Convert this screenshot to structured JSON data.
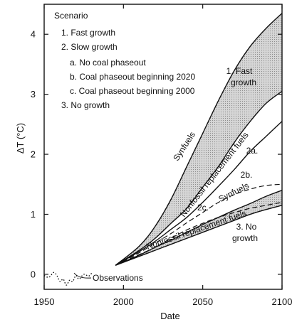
{
  "chart_data": {
    "type": "line",
    "xlabel": "Date",
    "ylabel": "ΔT (°C)",
    "xlim": [
      1950,
      2100
    ],
    "ylim": [
      -0.25,
      4.5
    ],
    "xticks": [
      1950,
      2000,
      2050,
      2100
    ],
    "yticks": [
      0,
      1,
      2,
      3,
      4
    ],
    "xtick_labels": [
      "1950",
      "2000",
      "2050",
      "2100"
    ],
    "ytick_labels": [
      "0",
      "1",
      "2",
      "3",
      "4"
    ],
    "legend": {
      "placement": "top-left",
      "title": "Scenario",
      "entries": [
        "1. Fast growth",
        "2. Slow growth",
        "a. No coal phaseout",
        "b. Coal phaseout beginning 2020",
        "c. Coal phaseout beginning 2000",
        "3. No growth"
      ]
    },
    "bands": [
      {
        "scenario": "1. Fast growth",
        "fill_color": "#d6d6d6",
        "upper": {
          "label": "Synfuels",
          "x": [
            1995,
            2010,
            2020,
            2030,
            2040,
            2050,
            2060,
            2070,
            2080,
            2090,
            2100
          ],
          "y": [
            0.15,
            0.47,
            0.8,
            1.25,
            1.8,
            2.35,
            2.9,
            3.4,
            3.8,
            4.1,
            4.35
          ]
        },
        "lower": {
          "label": "Nonfossil replacement fuels",
          "x": [
            1995,
            2010,
            2020,
            2030,
            2040,
            2050,
            2060,
            2070,
            2080,
            2090,
            2100
          ],
          "y": [
            0.15,
            0.4,
            0.6,
            0.85,
            1.1,
            1.45,
            1.8,
            2.2,
            2.55,
            2.85,
            3.05
          ]
        }
      },
      {
        "scenario": "3. No growth",
        "fill_color": "#d6d6d6",
        "upper": {
          "label": "Synfuels",
          "x": [
            1995,
            2010,
            2020,
            2030,
            2040,
            2050,
            2060,
            2070,
            2080,
            2090,
            2100
          ],
          "y": [
            0.15,
            0.32,
            0.45,
            0.57,
            0.7,
            0.83,
            0.95,
            1.07,
            1.18,
            1.3,
            1.4
          ]
        },
        "lower": {
          "label": "Nonfossil replacement fuels",
          "x": [
            1995,
            2010,
            2020,
            2030,
            2040,
            2050,
            2060,
            2070,
            2080,
            2090,
            2100
          ],
          "y": [
            0.15,
            0.3,
            0.4,
            0.5,
            0.6,
            0.7,
            0.8,
            0.9,
            1.0,
            1.08,
            1.15
          ]
        }
      }
    ],
    "series": [
      {
        "name": "2a.",
        "style": "solid",
        "x": [
          1995,
          2010,
          2020,
          2030,
          2040,
          2050,
          2060,
          2070,
          2080,
          2090,
          2100
        ],
        "y": [
          0.15,
          0.38,
          0.55,
          0.75,
          0.95,
          1.2,
          1.47,
          1.75,
          2.05,
          2.3,
          2.55
        ]
      },
      {
        "name": "2b.",
        "style": "dashed",
        "x": [
          1995,
          2010,
          2020,
          2030,
          2040,
          2050,
          2060,
          2070,
          2080,
          2090,
          2100
        ],
        "y": [
          0.15,
          0.36,
          0.52,
          0.68,
          0.86,
          1.03,
          1.2,
          1.33,
          1.42,
          1.48,
          1.5
        ]
      },
      {
        "name": "2c.",
        "style": "dashed",
        "x": [
          1995,
          2010,
          2020,
          2030,
          2040,
          2050,
          2060,
          2070,
          2080,
          2090,
          2100
        ],
        "y": [
          0.15,
          0.33,
          0.45,
          0.6,
          0.74,
          0.85,
          0.95,
          1.03,
          1.1,
          1.15,
          1.2
        ]
      },
      {
        "name": "Observations",
        "style": "dotted",
        "x": [
          1950,
          1953,
          1956,
          1958,
          1960,
          1962,
          1964,
          1966,
          1968,
          1970,
          1972,
          1975,
          1978,
          1980
        ],
        "y": [
          -0.02,
          -0.05,
          0.03,
          -0.02,
          -0.12,
          -0.08,
          -0.18,
          -0.1,
          -0.12,
          -0.02,
          -0.08,
          0.0,
          -0.03,
          0.02
        ]
      }
    ],
    "annotations": [
      {
        "text": "Synfuels",
        "near": "scenario 1 upper curve"
      },
      {
        "text": "Nonfossil replacement fuels",
        "near": "scenario 1 lower curve"
      },
      {
        "text": "1. Fast",
        "near": "scenario 1 band end"
      },
      {
        "text": "growth",
        "near": "scenario 1 band end"
      },
      {
        "text": "2a.",
        "near": "series 2a"
      },
      {
        "text": "2b.",
        "near": "series 2b"
      },
      {
        "text": "2c.",
        "near": "series 2c"
      },
      {
        "text": "Synfuels",
        "near": "scenario 3 upper curve"
      },
      {
        "text": "Nonfossil replacement fuels",
        "near": "scenario 3 lower curve"
      },
      {
        "text": "3. No",
        "near": "scenario 3 band end"
      },
      {
        "text": "growth",
        "near": "scenario 3 band end"
      },
      {
        "text": "Observations",
        "near": "observations"
      }
    ]
  }
}
